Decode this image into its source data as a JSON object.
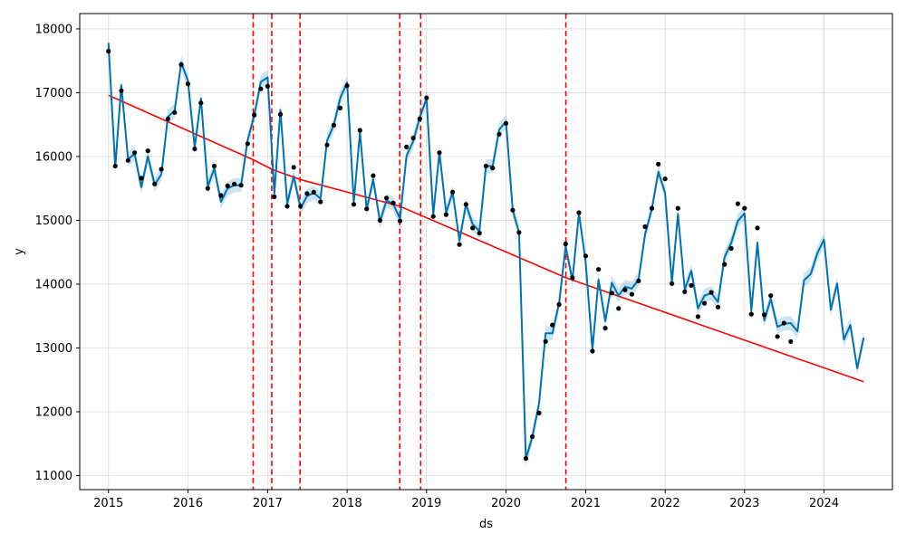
{
  "chart_data": {
    "type": "line",
    "title": "",
    "xlabel": "ds",
    "ylabel": "y",
    "xlim": [
      "2014-08-22",
      "2024-11-10"
    ],
    "ylim": [
      10780,
      18240
    ],
    "x_ticks": [
      "2015",
      "2016",
      "2017",
      "2018",
      "2019",
      "2020",
      "2021",
      "2022",
      "2023",
      "2024"
    ],
    "y_ticks": [
      11000,
      12000,
      13000,
      14000,
      15000,
      16000,
      17000,
      18000
    ],
    "grid": true,
    "colors": {
      "forecast": "#0072B2",
      "band": "#0072B2",
      "observed": "#000000",
      "trend": "#ff0000",
      "changepoint": "#ff0000"
    },
    "trend": [
      {
        "x": "2015-01-01",
        "y": 16960
      },
      {
        "x": "2016-10-27",
        "y": 15950
      },
      {
        "x": "2017-01-20",
        "y": 15800
      },
      {
        "x": "2017-05-30",
        "y": 15640
      },
      {
        "x": "2018-08-31",
        "y": 15220
      },
      {
        "x": "2018-12-05",
        "y": 15080
      },
      {
        "x": "2020-10-02",
        "y": 14100
      },
      {
        "x": "2024-07-01",
        "y": 12470
      }
    ],
    "changepoints": [
      "2016-10-27",
      "2017-01-20",
      "2017-05-30",
      "2018-08-31",
      "2018-12-05",
      "2020-10-02"
    ],
    "series": [
      {
        "kind": "observed",
        "points": [
          [
            "2015-01-01",
            17650
          ],
          [
            "2015-02-01",
            15850
          ],
          [
            "2015-03-01",
            17030
          ],
          [
            "2015-04-01",
            15940
          ],
          [
            "2015-05-01",
            16060
          ],
          [
            "2015-06-01",
            15660
          ],
          [
            "2015-07-01",
            16090
          ],
          [
            "2015-08-01",
            15570
          ],
          [
            "2015-09-01",
            15800
          ],
          [
            "2015-10-01",
            16590
          ],
          [
            "2015-11-01",
            16690
          ],
          [
            "2015-12-01",
            17440
          ],
          [
            "2016-01-01",
            17140
          ],
          [
            "2016-02-01",
            16120
          ],
          [
            "2016-03-01",
            16840
          ],
          [
            "2016-04-01",
            15500
          ],
          [
            "2016-05-01",
            15850
          ],
          [
            "2016-06-01",
            15390
          ],
          [
            "2016-07-01",
            15540
          ],
          [
            "2016-08-01",
            15570
          ],
          [
            "2016-09-01",
            15550
          ],
          [
            "2016-10-01",
            16200
          ],
          [
            "2016-11-01",
            16650
          ],
          [
            "2016-12-01",
            17060
          ],
          [
            "2017-01-01",
            17100
          ],
          [
            "2017-02-01",
            15370
          ],
          [
            "2017-03-01",
            16660
          ],
          [
            "2017-04-01",
            15220
          ],
          [
            "2017-05-01",
            15830
          ],
          [
            "2017-06-01",
            15220
          ],
          [
            "2017-07-01",
            15420
          ],
          [
            "2017-08-01",
            15440
          ],
          [
            "2017-09-01",
            15290
          ],
          [
            "2017-10-01",
            16180
          ],
          [
            "2017-11-01",
            16490
          ],
          [
            "2017-12-01",
            16760
          ],
          [
            "2018-01-01",
            17110
          ],
          [
            "2018-02-01",
            15250
          ],
          [
            "2018-03-01",
            16410
          ],
          [
            "2018-04-01",
            15180
          ],
          [
            "2018-05-01",
            15700
          ],
          [
            "2018-06-01",
            15000
          ],
          [
            "2018-07-01",
            15350
          ],
          [
            "2018-08-01",
            15270
          ],
          [
            "2018-09-01",
            14990
          ],
          [
            "2018-10-01",
            16150
          ],
          [
            "2018-11-01",
            16290
          ],
          [
            "2018-12-01",
            16590
          ],
          [
            "2019-01-01",
            16920
          ],
          [
            "2019-02-01",
            15060
          ],
          [
            "2019-03-01",
            16060
          ],
          [
            "2019-04-01",
            15090
          ],
          [
            "2019-05-01",
            15440
          ],
          [
            "2019-06-01",
            14620
          ],
          [
            "2019-07-01",
            15250
          ],
          [
            "2019-08-01",
            14880
          ],
          [
            "2019-09-01",
            14800
          ],
          [
            "2019-10-01",
            15850
          ],
          [
            "2019-11-01",
            15820
          ],
          [
            "2019-12-01",
            16350
          ],
          [
            "2020-01-01",
            16520
          ],
          [
            "2020-02-01",
            15160
          ],
          [
            "2020-03-01",
            14810
          ],
          [
            "2020-04-01",
            11270
          ],
          [
            "2020-05-01",
            11610
          ],
          [
            "2020-06-01",
            11980
          ],
          [
            "2020-07-01",
            13100
          ],
          [
            "2020-08-01",
            13360
          ],
          [
            "2020-09-01",
            13680
          ],
          [
            "2020-10-01",
            14630
          ],
          [
            "2020-11-01",
            14100
          ],
          [
            "2020-12-01",
            15120
          ],
          [
            "2021-01-01",
            14440
          ],
          [
            "2021-02-01",
            12950
          ],
          [
            "2021-03-01",
            14230
          ],
          [
            "2021-04-01",
            13310
          ],
          [
            "2021-05-01",
            13860
          ],
          [
            "2021-06-01",
            13620
          ],
          [
            "2021-07-01",
            13910
          ],
          [
            "2021-08-01",
            13840
          ],
          [
            "2021-09-01",
            14050
          ],
          [
            "2021-10-01",
            14900
          ],
          [
            "2021-11-01",
            15190
          ],
          [
            "2021-12-01",
            15880
          ],
          [
            "2022-01-01",
            15650
          ],
          [
            "2022-02-01",
            14010
          ],
          [
            "2022-03-01",
            15190
          ],
          [
            "2022-04-01",
            13880
          ],
          [
            "2022-05-01",
            13980
          ],
          [
            "2022-06-01",
            13490
          ],
          [
            "2022-07-01",
            13700
          ],
          [
            "2022-08-01",
            13870
          ],
          [
            "2022-09-01",
            13640
          ],
          [
            "2022-10-01",
            14310
          ],
          [
            "2022-11-01",
            14560
          ],
          [
            "2022-12-01",
            15260
          ],
          [
            "2023-01-01",
            15190
          ],
          [
            "2023-02-01",
            13530
          ],
          [
            "2023-03-01",
            14880
          ],
          [
            "2023-04-01",
            13520
          ],
          [
            "2023-05-01",
            13820
          ],
          [
            "2023-06-01",
            13180
          ],
          [
            "2023-07-01",
            13390
          ],
          [
            "2023-08-01",
            13100
          ]
        ]
      },
      {
        "kind": "forecast",
        "points": [
          [
            "2015-01-01",
            17780
          ],
          [
            "2015-02-01",
            15830
          ],
          [
            "2015-03-01",
            17120
          ],
          [
            "2015-04-01",
            15960
          ],
          [
            "2015-05-01",
            16040
          ],
          [
            "2015-06-01",
            15520
          ],
          [
            "2015-07-01",
            16000
          ],
          [
            "2015-08-01",
            15560
          ],
          [
            "2015-09-01",
            15720
          ],
          [
            "2015-10-01",
            16620
          ],
          [
            "2015-11-01",
            16720
          ],
          [
            "2015-12-01",
            17470
          ],
          [
            "2016-01-01",
            17190
          ],
          [
            "2016-02-01",
            16140
          ],
          [
            "2016-03-01",
            16910
          ],
          [
            "2016-04-01",
            15530
          ],
          [
            "2016-05-01",
            15810
          ],
          [
            "2016-06-01",
            15290
          ],
          [
            "2016-07-01",
            15500
          ],
          [
            "2016-08-01",
            15550
          ],
          [
            "2016-09-01",
            15550
          ],
          [
            "2016-10-01",
            16250
          ],
          [
            "2016-11-01",
            16650
          ],
          [
            "2016-12-01",
            17170
          ],
          [
            "2017-01-01",
            17240
          ],
          [
            "2017-02-01",
            15420
          ],
          [
            "2017-03-01",
            16730
          ],
          [
            "2017-04-01",
            15260
          ],
          [
            "2017-05-01",
            15690
          ],
          [
            "2017-06-01",
            15190
          ],
          [
            "2017-07-01",
            15380
          ],
          [
            "2017-08-01",
            15430
          ],
          [
            "2017-09-01",
            15340
          ],
          [
            "2017-10-01",
            16250
          ],
          [
            "2017-11-01",
            16490
          ],
          [
            "2017-12-01",
            16920
          ],
          [
            "2018-01-01",
            17160
          ],
          [
            "2018-02-01",
            15280
          ],
          [
            "2018-03-01",
            16380
          ],
          [
            "2018-04-01",
            15170
          ],
          [
            "2018-05-01",
            15640
          ],
          [
            "2018-06-01",
            14980
          ],
          [
            "2018-07-01",
            15310
          ],
          [
            "2018-08-01",
            15260
          ],
          [
            "2018-09-01",
            15020
          ],
          [
            "2018-10-01",
            16010
          ],
          [
            "2018-11-01",
            16240
          ],
          [
            "2018-12-01",
            16610
          ],
          [
            "2019-01-01",
            16910
          ],
          [
            "2019-02-01",
            15080
          ],
          [
            "2019-03-01",
            16070
          ],
          [
            "2019-04-01",
            15120
          ],
          [
            "2019-05-01",
            15440
          ],
          [
            "2019-06-01",
            14680
          ],
          [
            "2019-07-01",
            15250
          ],
          [
            "2019-08-01",
            14940
          ],
          [
            "2019-09-01",
            14830
          ],
          [
            "2019-10-01",
            15850
          ],
          [
            "2019-11-01",
            15850
          ],
          [
            "2019-12-01",
            16420
          ],
          [
            "2020-01-01",
            16550
          ],
          [
            "2020-02-01",
            15160
          ],
          [
            "2020-03-01",
            14810
          ],
          [
            "2020-04-01",
            11260
          ],
          [
            "2020-05-01",
            11610
          ],
          [
            "2020-06-01",
            12130
          ],
          [
            "2020-07-01",
            13230
          ],
          [
            "2020-08-01",
            13230
          ],
          [
            "2020-09-01",
            13700
          ],
          [
            "2020-10-01",
            14590
          ],
          [
            "2020-11-01",
            14060
          ],
          [
            "2020-12-01",
            15110
          ],
          [
            "2021-01-01",
            14350
          ],
          [
            "2021-02-01",
            12970
          ],
          [
            "2021-03-01",
            14070
          ],
          [
            "2021-04-01",
            13420
          ],
          [
            "2021-05-01",
            14020
          ],
          [
            "2021-06-01",
            13820
          ],
          [
            "2021-07-01",
            13960
          ],
          [
            "2021-08-01",
            13930
          ],
          [
            "2021-09-01",
            14070
          ],
          [
            "2021-10-01",
            14780
          ],
          [
            "2021-11-01",
            15180
          ],
          [
            "2021-12-01",
            15760
          ],
          [
            "2022-01-01",
            15430
          ],
          [
            "2022-02-01",
            14020
          ],
          [
            "2022-03-01",
            15100
          ],
          [
            "2022-04-01",
            13910
          ],
          [
            "2022-05-01",
            14210
          ],
          [
            "2022-06-01",
            13620
          ],
          [
            "2022-07-01",
            13820
          ],
          [
            "2022-08-01",
            13860
          ],
          [
            "2022-09-01",
            13720
          ],
          [
            "2022-10-01",
            14420
          ],
          [
            "2022-11-01",
            14650
          ],
          [
            "2022-12-01",
            14990
          ],
          [
            "2023-01-01",
            15110
          ],
          [
            "2023-02-01",
            13580
          ],
          [
            "2023-03-01",
            14650
          ],
          [
            "2023-04-01",
            13430
          ],
          [
            "2023-05-01",
            13770
          ],
          [
            "2023-06-01",
            13330
          ],
          [
            "2023-07-01",
            13380
          ],
          [
            "2023-08-01",
            13390
          ],
          [
            "2023-09-01",
            13260
          ],
          [
            "2023-10-01",
            14060
          ],
          [
            "2023-11-01",
            14160
          ],
          [
            "2023-12-01",
            14480
          ],
          [
            "2024-01-01",
            14700
          ],
          [
            "2024-02-01",
            13600
          ],
          [
            "2024-03-01",
            14010
          ],
          [
            "2024-04-01",
            13130
          ],
          [
            "2024-05-01",
            13360
          ],
          [
            "2024-06-01",
            12680
          ],
          [
            "2024-07-01",
            13160
          ]
        ]
      }
    ]
  }
}
